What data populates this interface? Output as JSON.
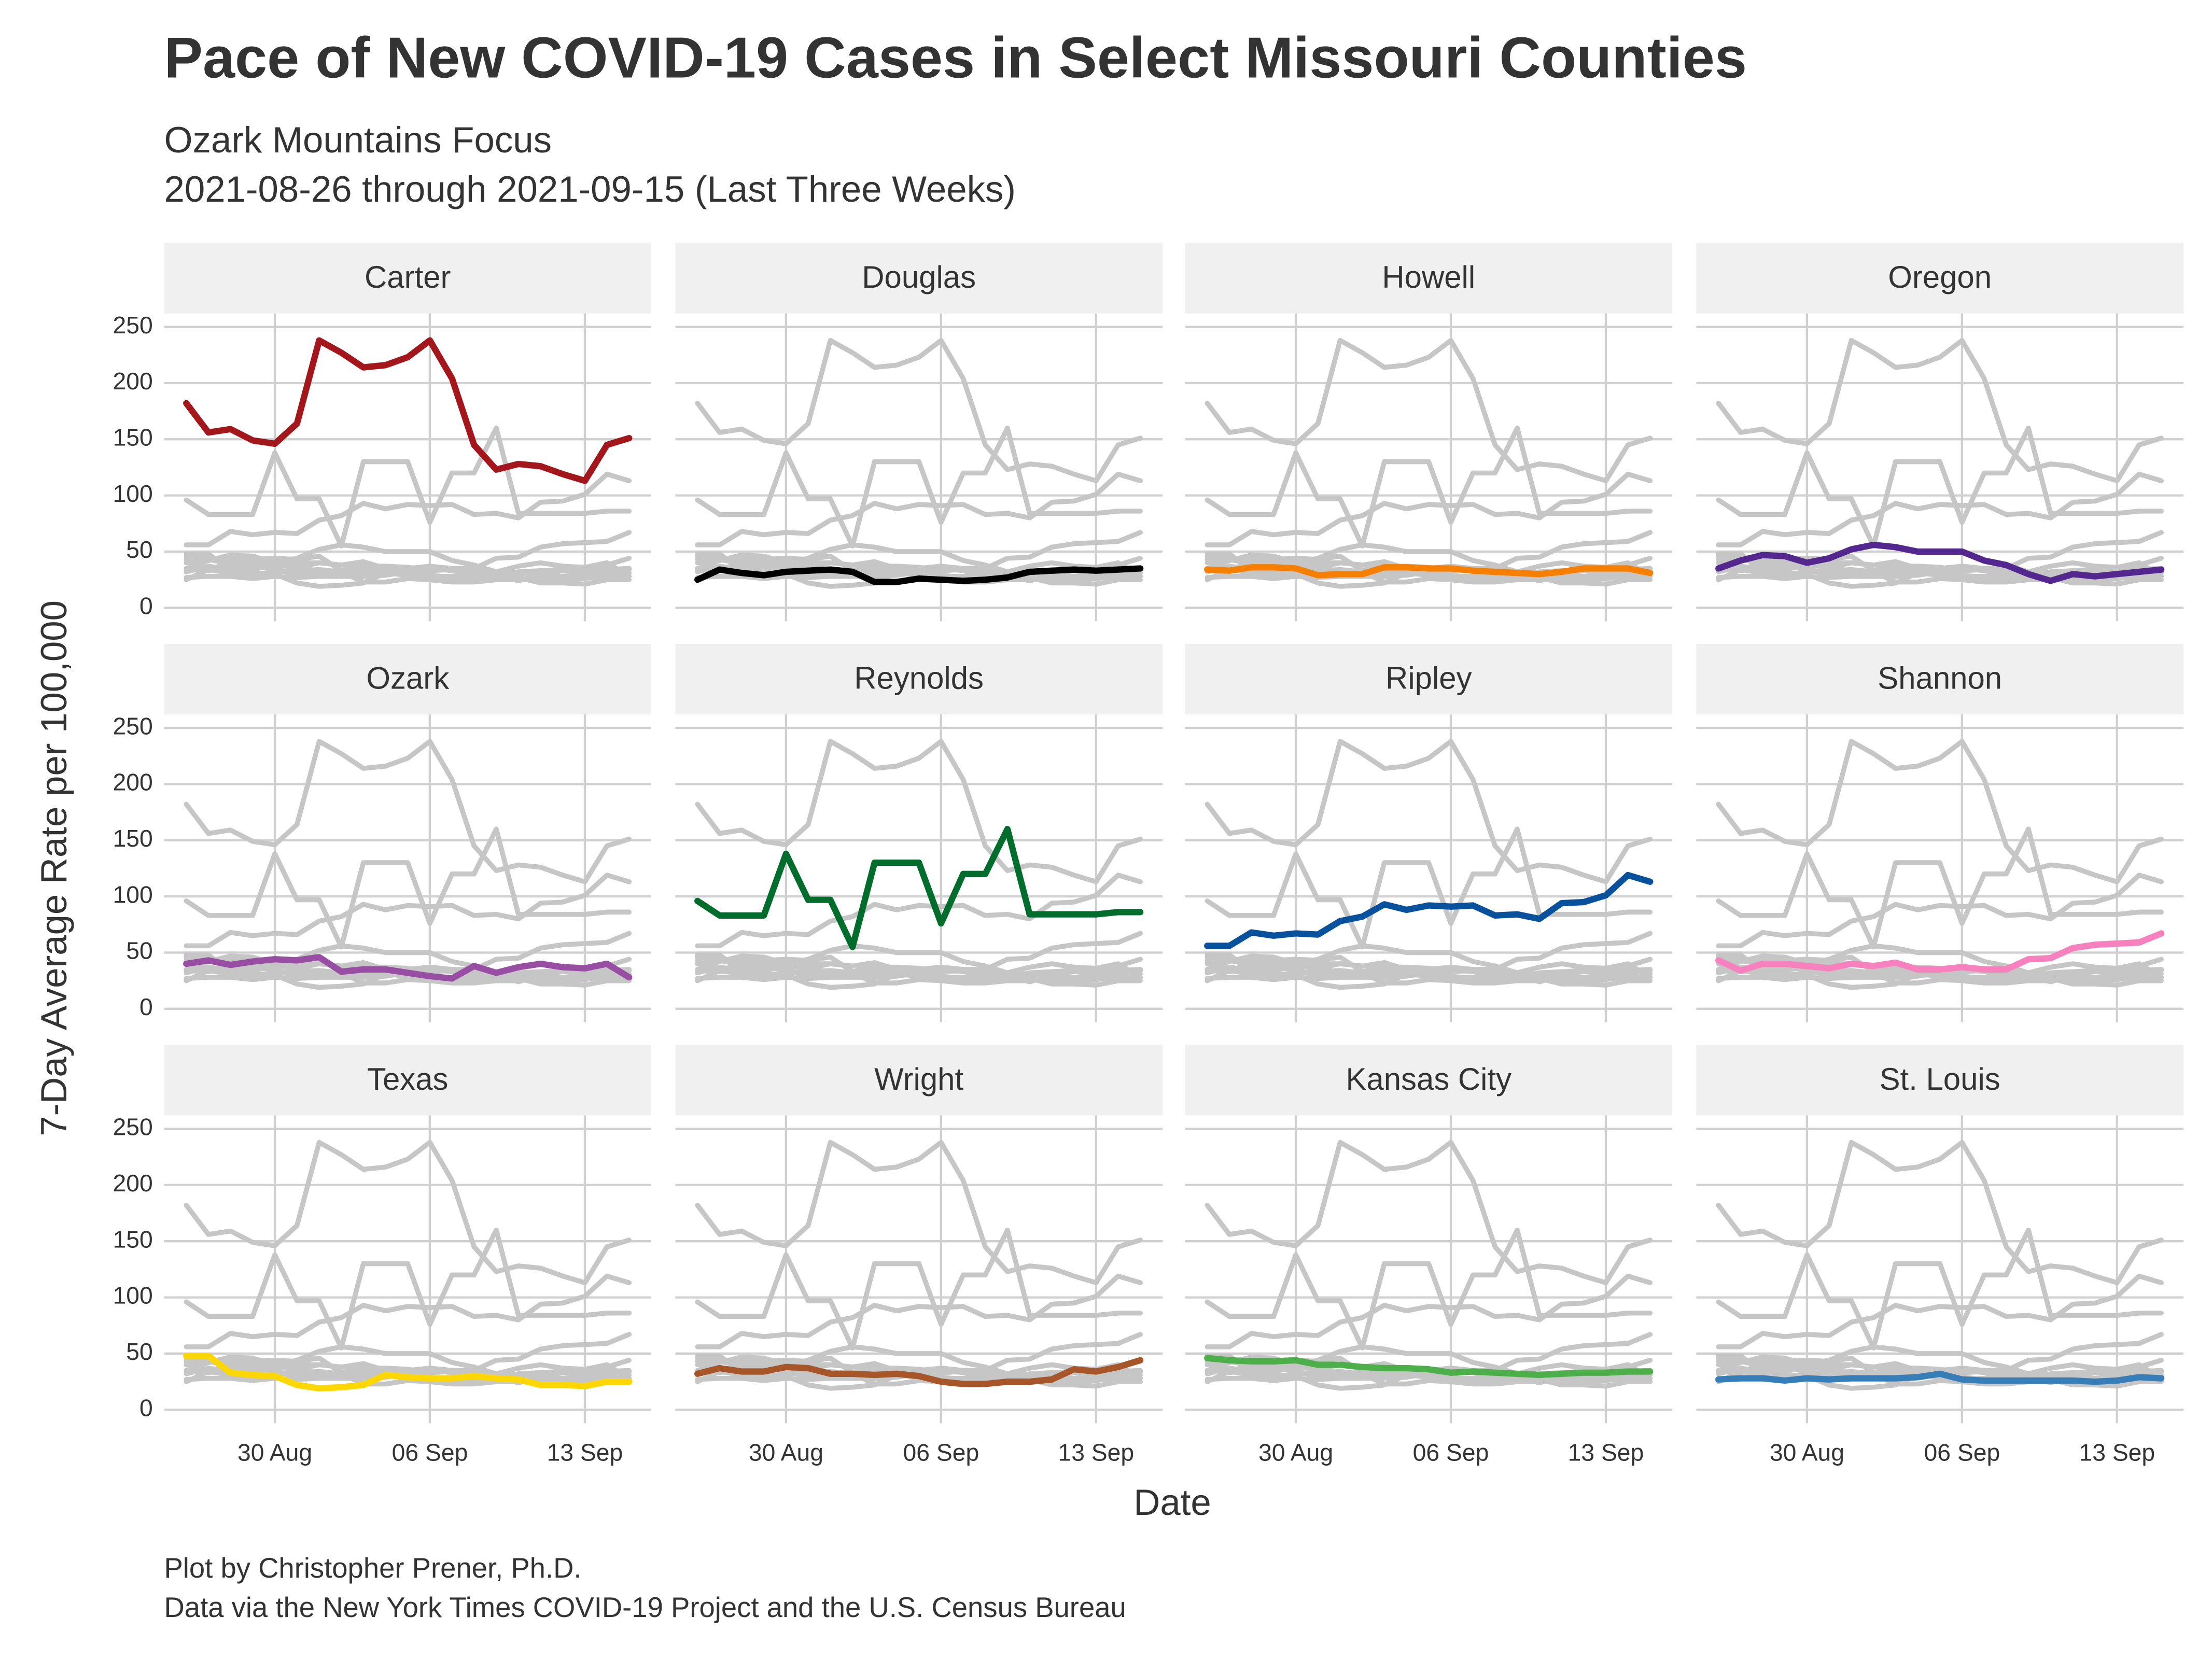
{
  "chart_data": {
    "type": "line",
    "title": "Pace of New COVID-19 Cases in Select Missouri Counties",
    "subtitle": [
      "Ozark Mountains Focus",
      "2021-08-26 through 2021-09-15 (Last Three Weeks)"
    ],
    "caption": [
      "Plot by Christopher Prener, Ph.D.",
      "Data via the New York Times COVID-19 Project and the U.S. Census Bureau"
    ],
    "x_label": "Date",
    "y_label": "7-Day Average Rate per 100,000",
    "x": [
      "2021-08-26",
      "2021-08-27",
      "2021-08-28",
      "2021-08-29",
      "2021-08-30",
      "2021-08-31",
      "2021-09-01",
      "2021-09-02",
      "2021-09-03",
      "2021-09-04",
      "2021-09-05",
      "2021-09-06",
      "2021-09-07",
      "2021-09-08",
      "2021-09-09",
      "2021-09-10",
      "2021-09-11",
      "2021-09-12",
      "2021-09-13",
      "2021-09-14",
      "2021-09-15"
    ],
    "xlim": [
      "2021-08-25",
      "2021-09-16"
    ],
    "xticks": [
      {
        "value": "2021-08-30",
        "label": "30 Aug"
      },
      {
        "value": "2021-09-06",
        "label": "06 Sep"
      },
      {
        "value": "2021-09-13",
        "label": "13 Sep"
      }
    ],
    "ylim": [
      -12,
      262
    ],
    "yticks": [
      0,
      50,
      100,
      150,
      200,
      250
    ],
    "grid": true,
    "context_color": "#c6c6c6",
    "series": [
      {
        "name": "Carter",
        "color": "#a3171c",
        "values": [
          182,
          156,
          159,
          149,
          146,
          164,
          238,
          227,
          214,
          216,
          223,
          238,
          204,
          145,
          123,
          128,
          126,
          119,
          113,
          145,
          151
        ]
      },
      {
        "name": "Douglas",
        "color": "#000000",
        "values": [
          25,
          34,
          31,
          29,
          32,
          33,
          34,
          32,
          23,
          23,
          26,
          25,
          24,
          25,
          27,
          32,
          33,
          34,
          33,
          34,
          35
        ]
      },
      {
        "name": "Howell",
        "color": "#f77f00",
        "values": [
          34,
          33,
          36,
          36,
          35,
          29,
          30,
          30,
          36,
          36,
          35,
          35,
          33,
          32,
          31,
          30,
          32,
          35,
          35,
          35,
          31
        ]
      },
      {
        "name": "Oregon",
        "color": "#54278f",
        "values": [
          35,
          42,
          47,
          46,
          40,
          44,
          52,
          56,
          54,
          50,
          50,
          50,
          42,
          38,
          30,
          24,
          30,
          28,
          30,
          32,
          34
        ]
      },
      {
        "name": "Ozark",
        "color": "#984ea3",
        "values": [
          40,
          43,
          39,
          42,
          44,
          43,
          46,
          33,
          35,
          35,
          32,
          29,
          27,
          38,
          32,
          37,
          40,
          37,
          36,
          40,
          28
        ]
      },
      {
        "name": "Reynolds",
        "color": "#006d2c",
        "values": [
          96,
          83,
          83,
          83,
          138,
          97,
          97,
          55,
          130,
          130,
          130,
          76,
          120,
          120,
          160,
          84,
          84,
          84,
          84,
          86,
          86
        ]
      },
      {
        "name": "Ripley",
        "color": "#08519c",
        "values": [
          56,
          56,
          68,
          65,
          67,
          66,
          78,
          82,
          93,
          88,
          92,
          91,
          92,
          83,
          84,
          80,
          94,
          95,
          101,
          119,
          113
        ]
      },
      {
        "name": "Shannon",
        "color": "#f781bf",
        "values": [
          43,
          34,
          40,
          40,
          38,
          36,
          40,
          38,
          41,
          35,
          35,
          37,
          35,
          35,
          44,
          45,
          54,
          57,
          58,
          59,
          67
        ]
      },
      {
        "name": "Texas",
        "color": "#ffd700",
        "values": [
          48,
          48,
          33,
          31,
          30,
          22,
          19,
          20,
          22,
          31,
          29,
          28,
          28,
          30,
          28,
          27,
          22,
          22,
          21,
          25,
          25
        ]
      },
      {
        "name": "Wright",
        "color": "#a65628",
        "values": [
          32,
          37,
          34,
          34,
          38,
          37,
          32,
          32,
          31,
          32,
          30,
          25,
          23,
          23,
          25,
          25,
          27,
          36,
          34,
          38,
          44
        ]
      },
      {
        "name": "Kansas City",
        "color": "#4daf4a",
        "values": [
          46,
          44,
          43,
          43,
          44,
          40,
          40,
          38,
          37,
          37,
          36,
          33,
          34,
          33,
          32,
          31,
          32,
          33,
          33,
          34,
          34
        ]
      },
      {
        "name": "St. Louis",
        "color": "#377eb8",
        "values": [
          27,
          28,
          28,
          26,
          28,
          27,
          28,
          28,
          28,
          29,
          32,
          27,
          26,
          26,
          26,
          26,
          26,
          25,
          26,
          29,
          28
        ]
      }
    ]
  }
}
